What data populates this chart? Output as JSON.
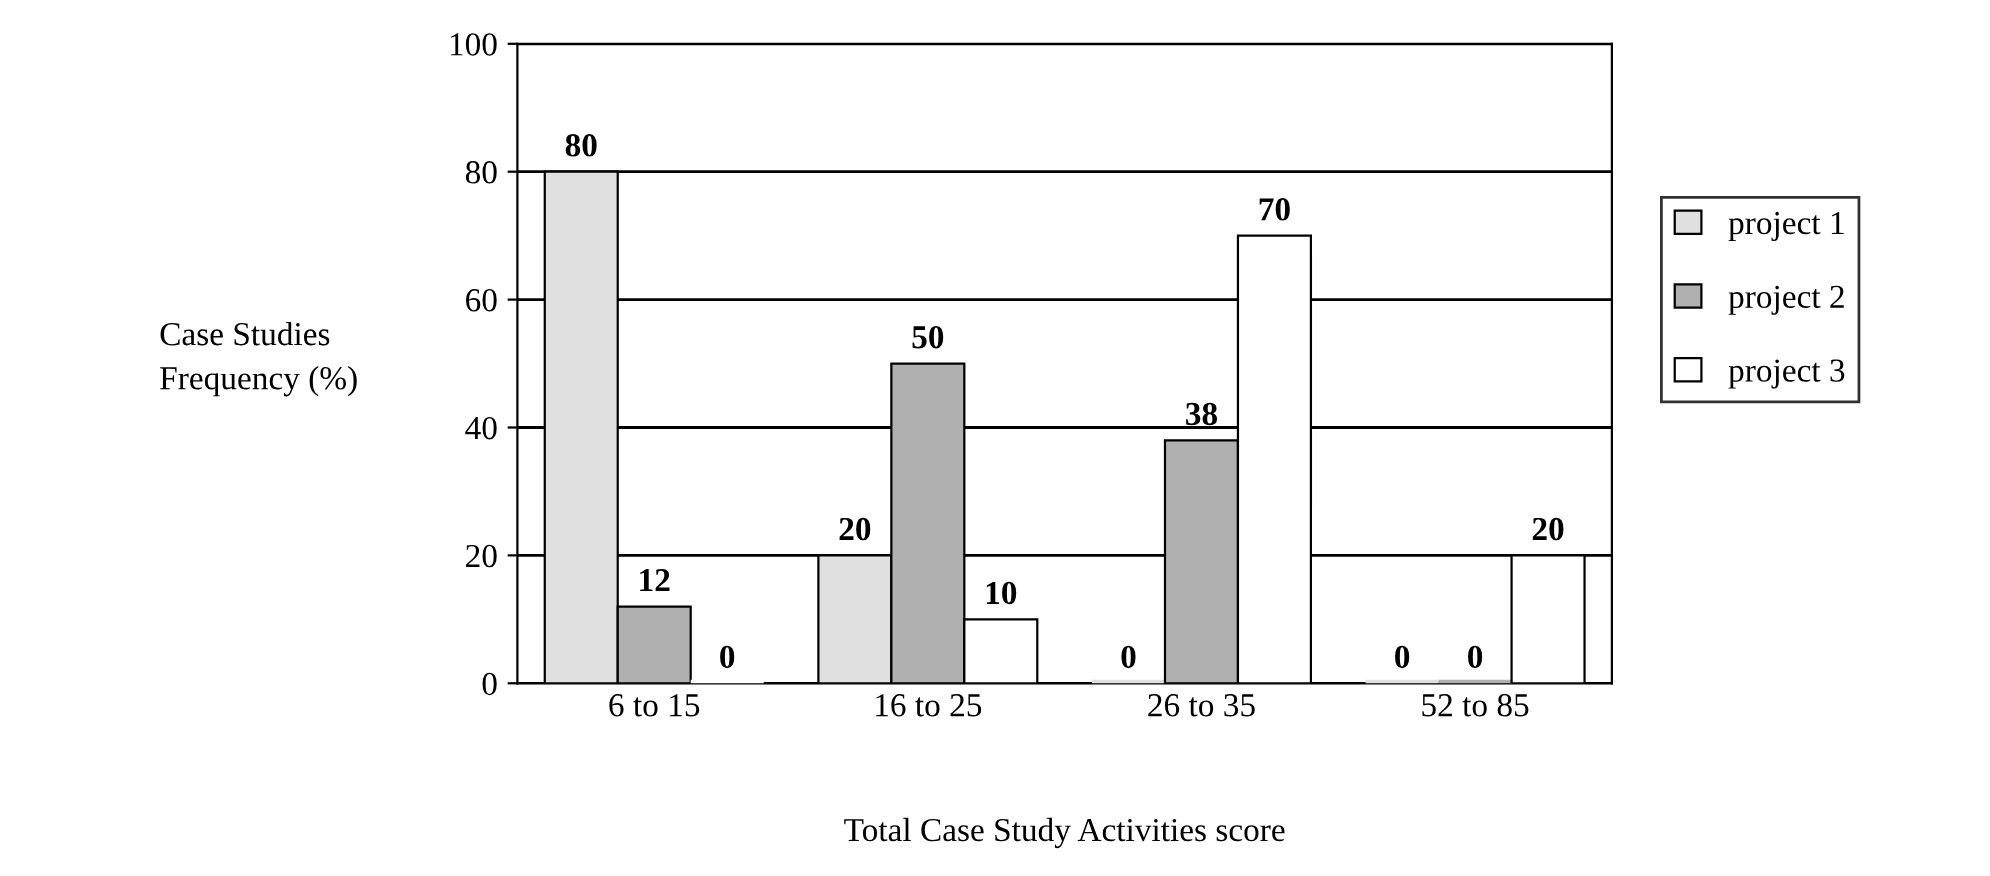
{
  "chart_data": {
    "type": "bar",
    "xlabel": "Total Case Study Activities score",
    "ylabel": "Case Studies\nFrequency (%)",
    "categories": [
      "6 to 15",
      "16 to 25",
      "26 to 35",
      "52 to 85"
    ],
    "series": [
      {
        "name": "project 1",
        "color": "#e0e0e0",
        "values": [
          80,
          20,
          0,
          0
        ]
      },
      {
        "name": "project 2",
        "color": "#b0b0b0",
        "values": [
          12,
          50,
          38,
          0
        ]
      },
      {
        "name": "project 3",
        "color": "#ffffff",
        "values": [
          0,
          10,
          70,
          20
        ]
      }
    ],
    "ylim": [
      0,
      100
    ],
    "yticks": [
      0,
      20,
      40,
      60,
      80,
      100
    ],
    "grid": "y",
    "legend": "right",
    "data_labels": true
  }
}
